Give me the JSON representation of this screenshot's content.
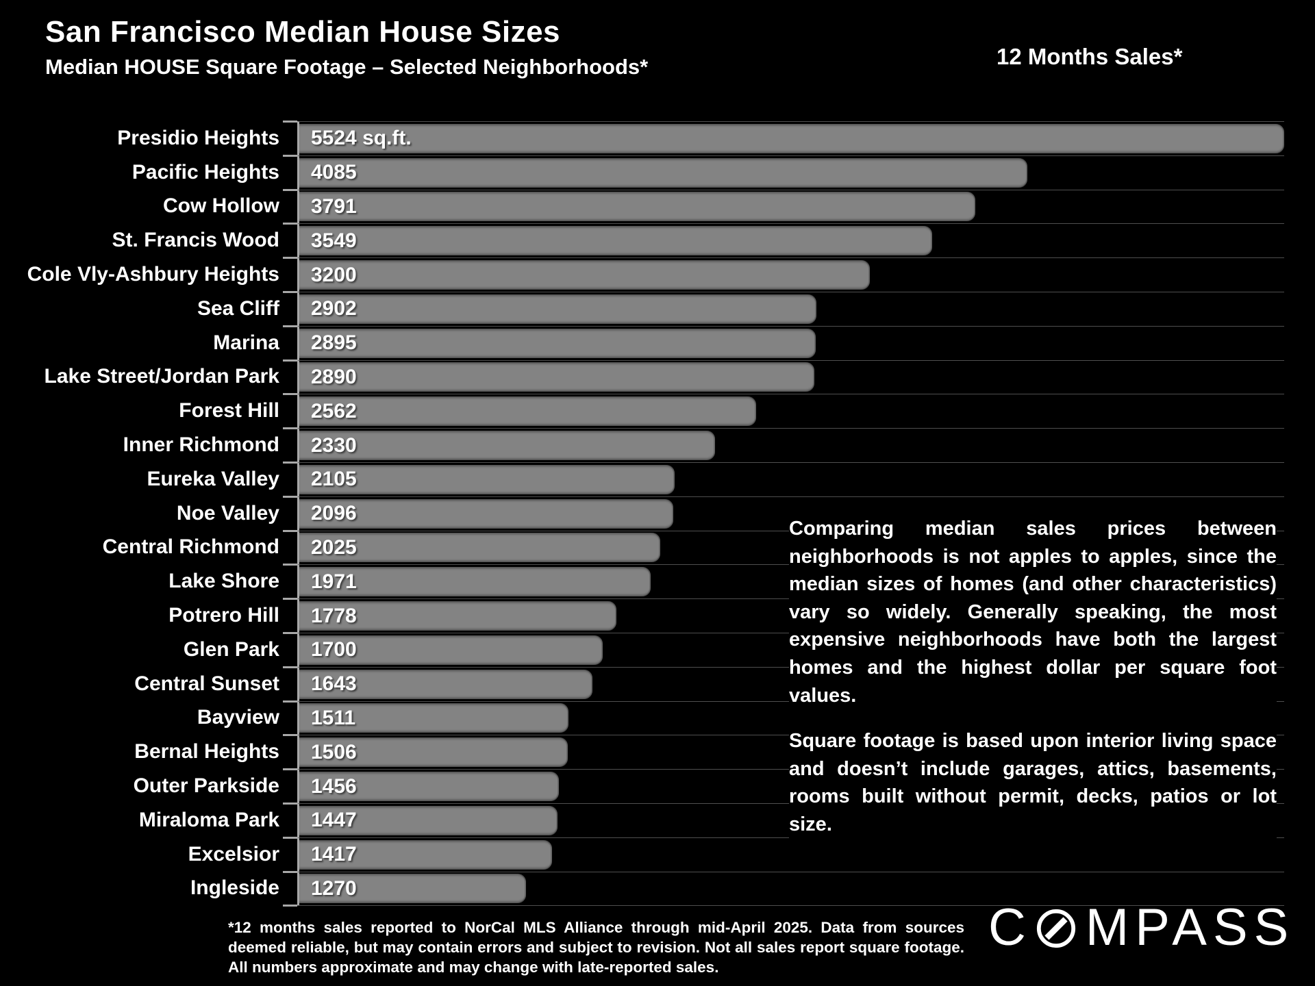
{
  "header": {
    "title": "San Francisco Median House Sizes",
    "subtitle": "Median HOUSE Square Footage – Selected Neighborhoods*",
    "right_label": "12 Months Sales*"
  },
  "chart_data": {
    "type": "bar",
    "orientation": "horizontal",
    "title": "San Francisco Median House Sizes",
    "subtitle": "Median HOUSE Square Footage – Selected Neighborhoods*",
    "xlabel": "",
    "ylabel": "",
    "unit": "sq.ft.",
    "xlim": [
      0,
      5524
    ],
    "grid": "category-boundaries",
    "categories": [
      "Presidio Heights",
      "Pacific Heights",
      "Cow Hollow",
      "St. Francis Wood",
      "Cole Vly-Ashbury Heights",
      "Sea Cliff",
      "Marina",
      "Lake Street/Jordan Park",
      "Forest Hill",
      "Inner Richmond",
      "Eureka Valley",
      "Noe Valley",
      "Central Richmond",
      "Lake Shore",
      "Potrero Hill",
      "Glen Park",
      "Central Sunset",
      "Bayview",
      "Bernal Heights",
      "Outer Parkside",
      "Miraloma Park",
      "Excelsior",
      "Ingleside"
    ],
    "values": [
      5524,
      4085,
      3791,
      3549,
      3200,
      2902,
      2895,
      2890,
      2562,
      2330,
      2105,
      2096,
      2025,
      1971,
      1778,
      1700,
      1643,
      1511,
      1506,
      1456,
      1447,
      1417,
      1270
    ],
    "value_labels": [
      "5524 sq.ft.",
      "4085",
      "3791",
      "3549",
      "3200",
      "2902",
      "2895",
      "2890",
      "2562",
      "2330",
      "2105",
      "2096",
      "2025",
      "1971",
      "1778",
      "1700",
      "1643",
      "1511",
      "1506",
      "1456",
      "1447",
      "1417",
      "1270"
    ],
    "bar_color": "#838383",
    "gridline_color": "#4f4f4f",
    "axis_color": "#a8a8a8",
    "background_color": "#000000",
    "text_color": "#ffffff"
  },
  "commentary": {
    "para1": "Comparing median sales prices between neighborhoods is not apples to apples, since the median sizes of homes (and other characteristics) vary so widely. Generally speaking, the most expensive neighborhoods have both the largest homes and the highest dollar per square foot values.",
    "para2": "Square footage is based upon interior living space and doesn’t include garages, attics, basements, rooms built without permit, decks, patios or lot size."
  },
  "footnote": "*12 months sales reported to NorCal MLS Alliance through mid-April 2025. Data from sources deemed reliable, but may contain errors and subject to revision. Not all sales report square footage. All numbers approximate and may change with late-reported sales.",
  "logo": {
    "name": "COMPASS",
    "prefix": "C",
    "suffix": "MPASS"
  }
}
